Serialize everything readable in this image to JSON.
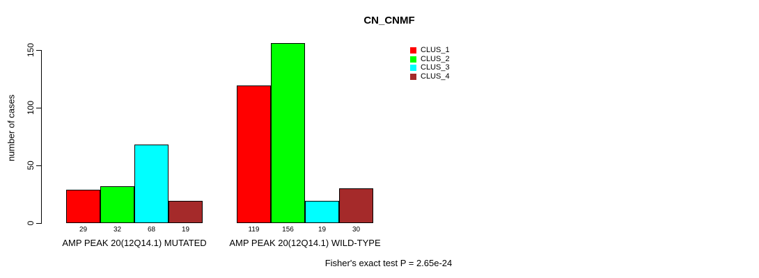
{
  "chart": {
    "title": "CN_CNMF",
    "ylabel": "number of cases",
    "footnote": "Fisher's exact test P = 2.65e-24"
  },
  "chart_data": {
    "type": "bar",
    "title": "CN_CNMF",
    "xlabel": "",
    "ylabel": "number of cases",
    "categories": [
      "AMP PEAK 20(12Q14.1) MUTATED",
      "AMP PEAK 20(12Q14.1) WILD-TYPE"
    ],
    "series": [
      {
        "name": "CLUS_1",
        "color": "#ff0000",
        "values": [
          29,
          119
        ]
      },
      {
        "name": "CLUS_2",
        "color": "#00ff00",
        "values": [
          32,
          156
        ]
      },
      {
        "name": "CLUS_3",
        "color": "#00ffff",
        "values": [
          68,
          19
        ]
      },
      {
        "name": "CLUS_4",
        "color": "#a52a2a",
        "values": [
          19,
          30
        ]
      }
    ],
    "ylim": [
      0,
      150
    ],
    "yticks": [
      0,
      50,
      100,
      150
    ],
    "grid": false,
    "legend_position": "top-right",
    "bar_border_color": "#000000",
    "value_labels_shown": true,
    "annotation": "Fisher's exact test P = 2.65e-24"
  }
}
